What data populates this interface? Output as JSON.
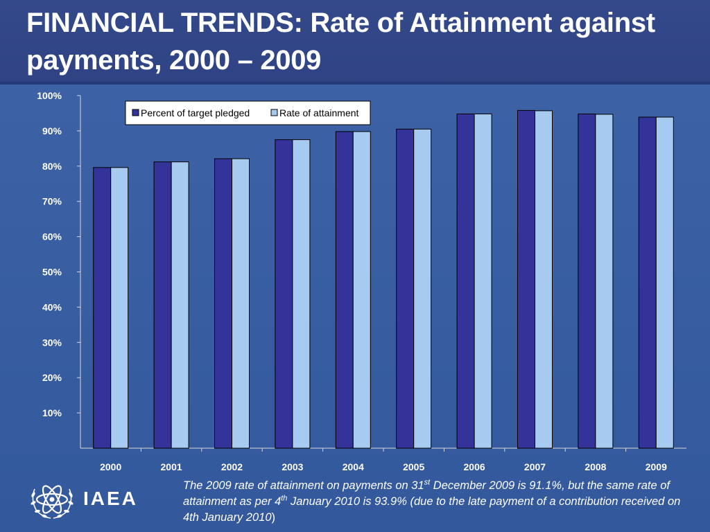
{
  "slide": {
    "title": "FINANCIAL TRENDS: Rate of Attainment against payments, 2000 – 2009",
    "logo_text": "IAEA",
    "footnote": {
      "p1": "The 2009 rate of attainment on payments on 31",
      "s1": "st",
      "p2": " December 2009 is 91.1%, but the same rate of attainment as per 4",
      "s2": "th",
      "p3": " January 2010 is 93.9% (due to the late payment of a contribution received on 4th January 2010",
      "p4": ")"
    },
    "icons": {
      "logo": "atom-olive-wreath-icon"
    }
  },
  "chart_data": {
    "type": "bar",
    "categories": [
      "2000",
      "2001",
      "2002",
      "2003",
      "2004",
      "2005",
      "2006",
      "2007",
      "2008",
      "2009"
    ],
    "series": [
      {
        "name": "Percent of target pledged",
        "color": "#333399",
        "values": [
          79.6,
          81.2,
          82.1,
          87.5,
          89.8,
          90.5,
          94.8,
          95.8,
          94.8,
          93.9
        ]
      },
      {
        "name": "Rate of attainment",
        "color": "#a6caf0",
        "values": [
          79.6,
          81.2,
          82.1,
          87.5,
          89.8,
          90.5,
          94.8,
          95.7,
          94.7,
          93.9
        ]
      }
    ],
    "ylim": [
      0,
      100
    ],
    "yticks": [
      "10%",
      "20%",
      "30%",
      "40%",
      "50%",
      "60%",
      "70%",
      "80%",
      "90%",
      "100%"
    ],
    "grid": false,
    "legend": "top-inside",
    "title": "",
    "xlabel": "",
    "ylabel": ""
  }
}
